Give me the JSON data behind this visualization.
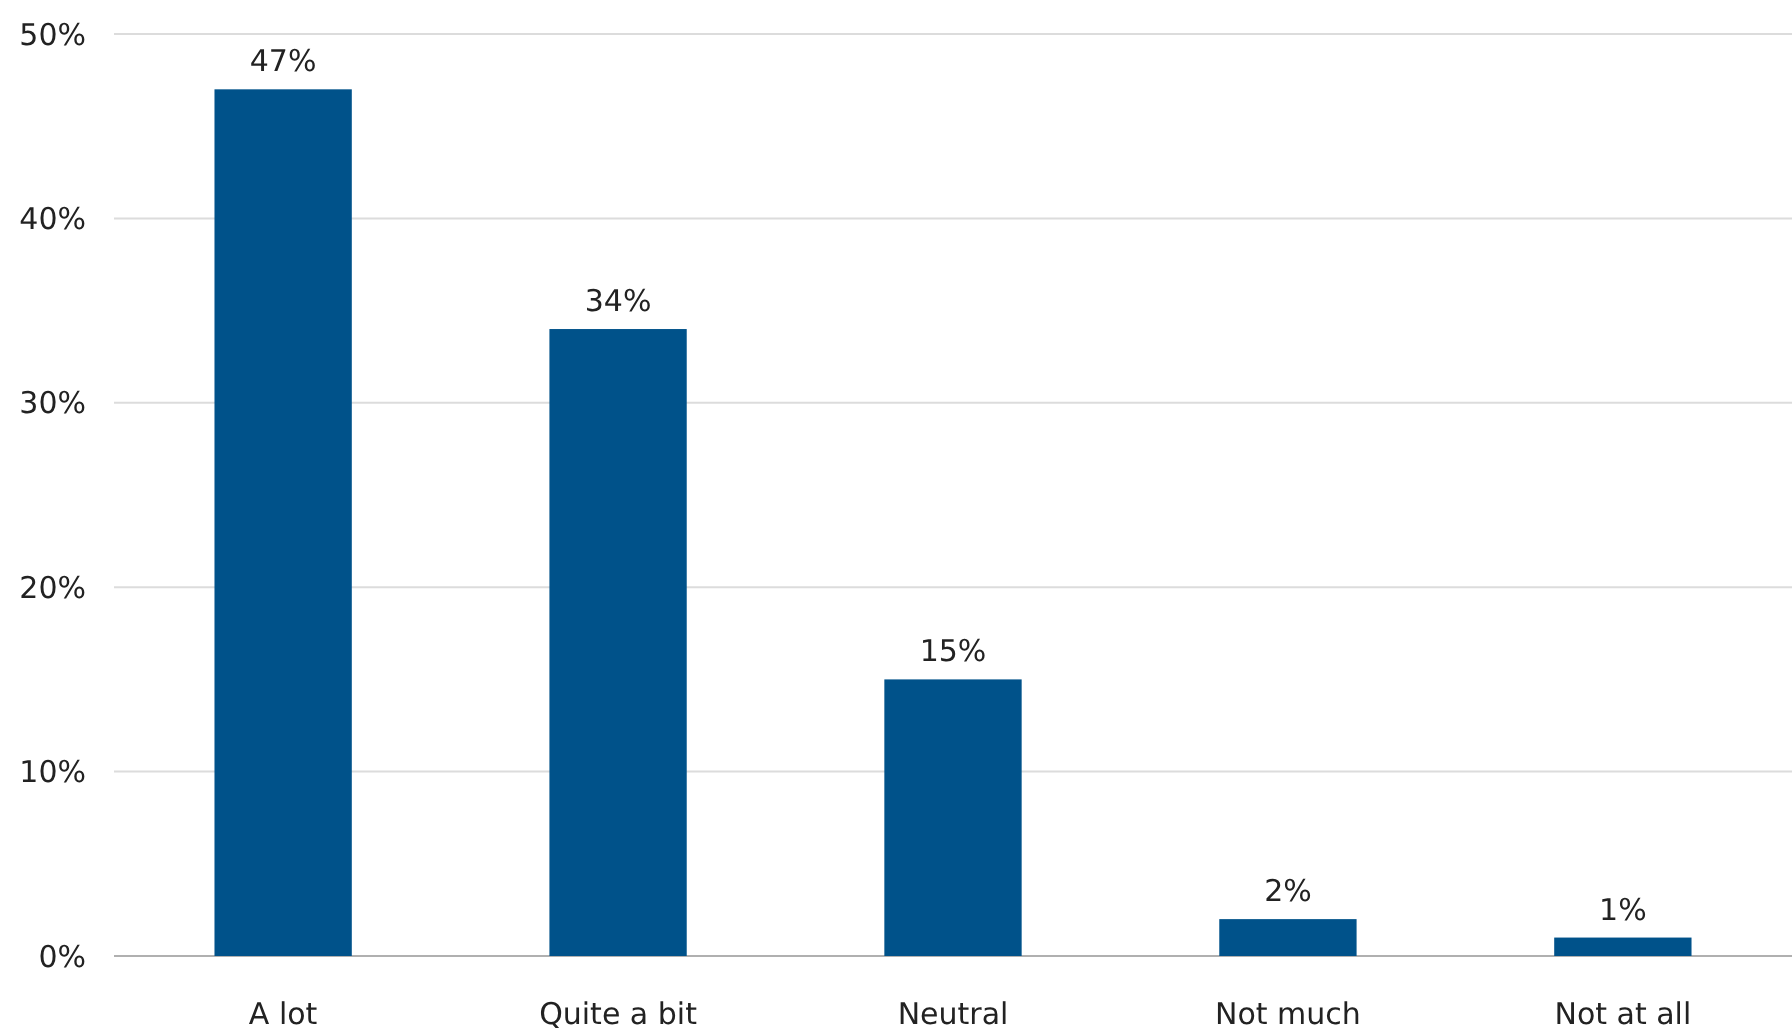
{
  "chart_data": {
    "type": "bar",
    "categories": [
      "A lot",
      "Quite a bit",
      "Neutral",
      "Not much",
      "Not at all"
    ],
    "values": [
      47,
      34,
      15,
      2,
      1
    ],
    "color": "#00528a",
    "value_labels": [
      "47%",
      "34%",
      "15%",
      "2%",
      "1%"
    ],
    "ylim": [
      0,
      50
    ],
    "yticks": [
      {
        "value": 0,
        "label": "0%"
      },
      {
        "value": 10,
        "label": "10%"
      },
      {
        "value": 20,
        "label": "20%"
      },
      {
        "value": 30,
        "label": "30%"
      },
      {
        "value": 40,
        "label": "40%"
      },
      {
        "value": 50,
        "label": "50%"
      }
    ],
    "grid": "y"
  }
}
